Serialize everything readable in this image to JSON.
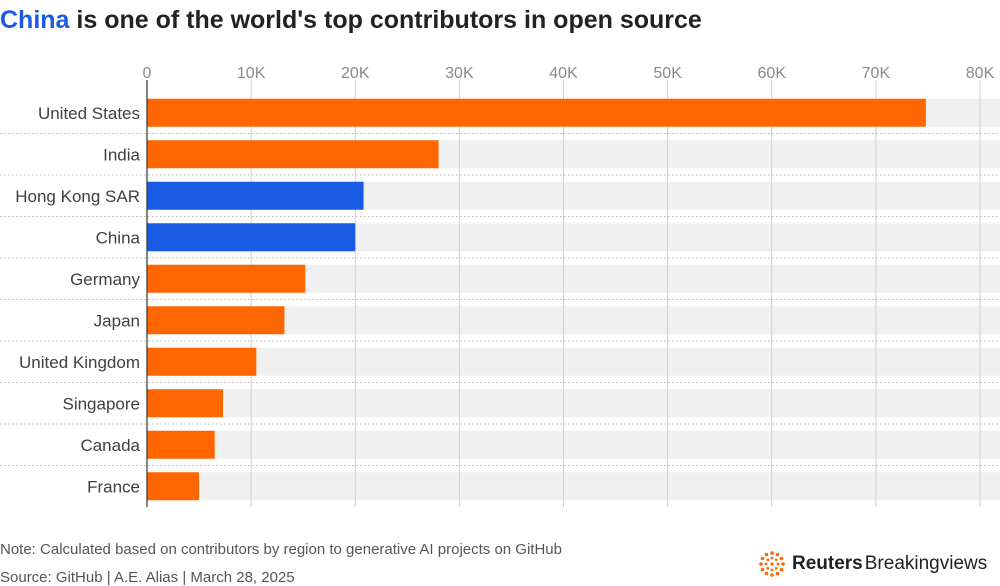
{
  "title": {
    "highlight": "China",
    "rest": " is one of the world's top contributors in open source"
  },
  "chart_data": {
    "type": "bar",
    "orientation": "horizontal",
    "title": "China is one of the world's top contributors in open source",
    "xlabel": "",
    "ylabel": "",
    "xlim": [
      0,
      80000
    ],
    "ticks": [
      0,
      10000,
      20000,
      30000,
      40000,
      50000,
      60000,
      70000,
      80000
    ],
    "tick_labels": [
      "0",
      "10K",
      "20K",
      "30K",
      "40K",
      "50K",
      "60K",
      "70K",
      "80K"
    ],
    "categories": [
      "United States",
      "India",
      "Hong Kong SAR",
      "China",
      "Germany",
      "Japan",
      "United Kingdom",
      "Singapore",
      "Canada",
      "France"
    ],
    "values": [
      74800,
      28000,
      20800,
      20000,
      15200,
      13200,
      10500,
      7300,
      6500,
      5000
    ],
    "highlighted": [
      "Hong Kong SAR",
      "China"
    ],
    "colors": {
      "default": "#ff6600",
      "highlight": "#1a5be3",
      "band": "#f0f0f0",
      "grid": "#cfcfcf"
    }
  },
  "note": "Note: Calculated based on contributors by region to generative AI projects on GitHub",
  "source": "Source: GitHub | A.E. Alias | March 28, 2025",
  "brand": {
    "name_bold": "Reuters",
    "name_light": "Breakingviews",
    "icon": "reuters-dot-logo-icon"
  }
}
